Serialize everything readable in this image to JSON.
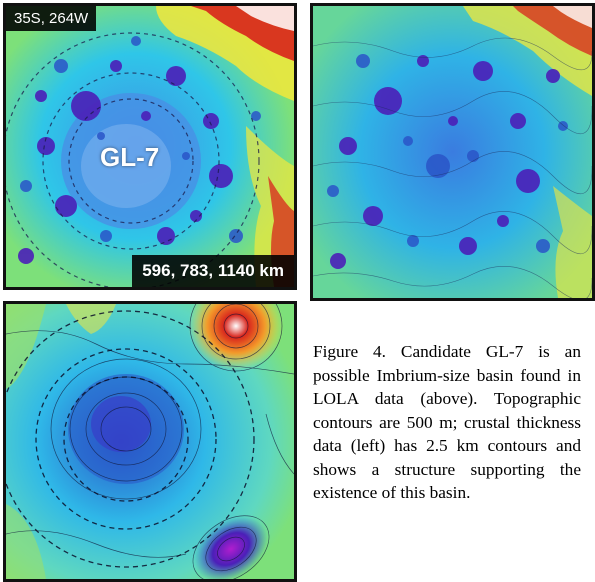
{
  "panels": {
    "topography": {
      "coords_label": "35S, 264W",
      "basin_label": "GL-7",
      "diameters_label": "596, 783, 1140 km",
      "icon": "topographic-map-image"
    },
    "detail": {
      "icon": "detailed-topography-image"
    },
    "crustal": {
      "icon": "crustal-thickness-contour-image"
    }
  },
  "caption": "Figure 4. Candidate GL-7 is an possible Imbrium-size basin found in LOLA data (above). Topographic contours are 500 m; crustal thickness data (left) has 2.5 km contours and shows a structure supporting the existence of this basin.",
  "colors": {
    "deep_purple": "#4b1fb8",
    "blue": "#3a7ce0",
    "cyan": "#2fc6e8",
    "green": "#7de07a",
    "yellow": "#f3e83a",
    "red": "#d8241c",
    "white": "#ffffff",
    "frame": "#111111"
  }
}
